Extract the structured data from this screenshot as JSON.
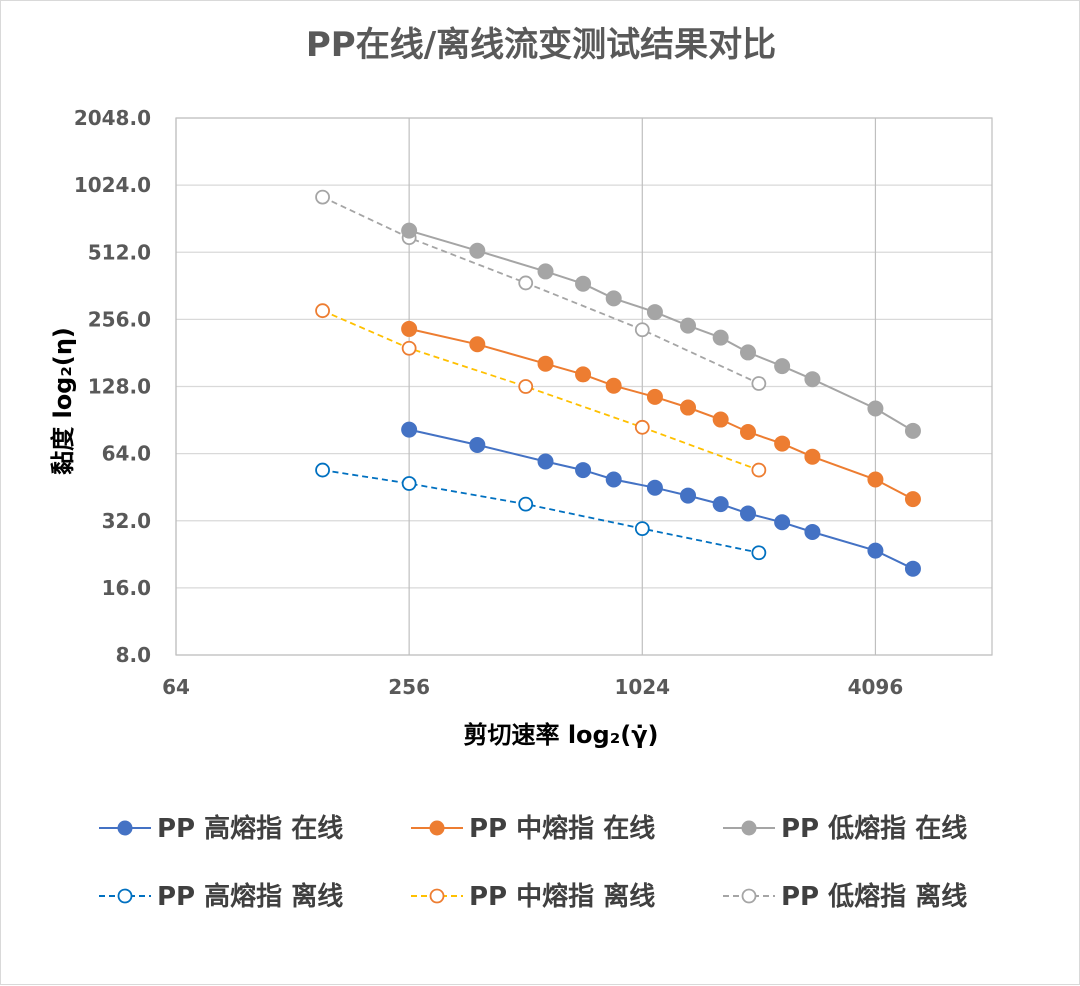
{
  "chart_data": {
    "type": "scatter",
    "title": "PP在线/离线流变测试结果对比",
    "xlabel": "剪切速率 log₂(γ̇)",
    "ylabel": "黏度 log₂(η)",
    "x_scale": "log2",
    "y_scale": "log2",
    "xlim": [
      64,
      8192
    ],
    "ylim": [
      8,
      2048
    ],
    "x_ticks": [
      64,
      256,
      1024,
      4096
    ],
    "x_tick_labels": [
      "64",
      "256",
      "1024",
      "4096"
    ],
    "y_ticks": [
      8,
      16,
      32,
      64,
      128,
      256,
      512,
      1024,
      2048
    ],
    "y_tick_labels": [
      "8.0",
      "16.0",
      "32.0",
      "64.0",
      "128.0",
      "256.0",
      "512.0",
      "1024.0",
      "2048.0"
    ],
    "grid": true,
    "legend_position": "bottom",
    "series": [
      {
        "name": "PP 高熔指 在线",
        "color": "#4472c4",
        "marker": "filled",
        "line": "solid",
        "x": [
          256,
          384,
          576,
          720,
          864,
          1104,
          1344,
          1632,
          1920,
          2352,
          2816,
          4096,
          5120
        ],
        "y": [
          82,
          70,
          59,
          54,
          49,
          45,
          41.5,
          38,
          34.5,
          31.5,
          28.5,
          23.5,
          19.5
        ]
      },
      {
        "name": "PP 中熔指 在线",
        "color": "#ed7d31",
        "marker": "filled",
        "line": "solid",
        "x": [
          256,
          384,
          576,
          720,
          864,
          1104,
          1344,
          1632,
          1920,
          2352,
          2816,
          4096,
          5120
        ],
        "y": [
          232,
          198,
          162,
          145,
          129,
          115,
          103,
          91,
          80,
          71,
          62,
          49,
          40
        ]
      },
      {
        "name": "PP 低熔指 在线",
        "color": "#a5a5a5",
        "marker": "filled",
        "line": "solid",
        "x": [
          256,
          384,
          576,
          720,
          864,
          1104,
          1344,
          1632,
          1920,
          2352,
          2816,
          4096,
          5120
        ],
        "y": [
          640,
          520,
          420,
          370,
          318,
          276,
          240,
          212,
          182,
          158,
          138,
          102,
          81
        ]
      },
      {
        "name": "PP 高熔指 离线",
        "color": "#0070c0",
        "marker": "open",
        "line": "dashed",
        "x": [
          153,
          256,
          512,
          1024,
          2048
        ],
        "y": [
          54,
          47,
          38,
          29.5,
          23
        ]
      },
      {
        "name": "PP 中熔指 离线",
        "color": "#ffc000",
        "marker": "open",
        "marker_color": "#ed7d31",
        "line": "dashed",
        "x": [
          153,
          256,
          512,
          1024,
          2048
        ],
        "y": [
          280,
          190,
          128,
          84,
          54
        ]
      },
      {
        "name": "PP 低熔指 离线",
        "color": "#a5a5a5",
        "marker": "open",
        "line": "dashed",
        "x": [
          153,
          256,
          512,
          1024,
          2048
        ],
        "y": [
          905,
          595,
          373,
          230,
          132
        ]
      }
    ]
  }
}
